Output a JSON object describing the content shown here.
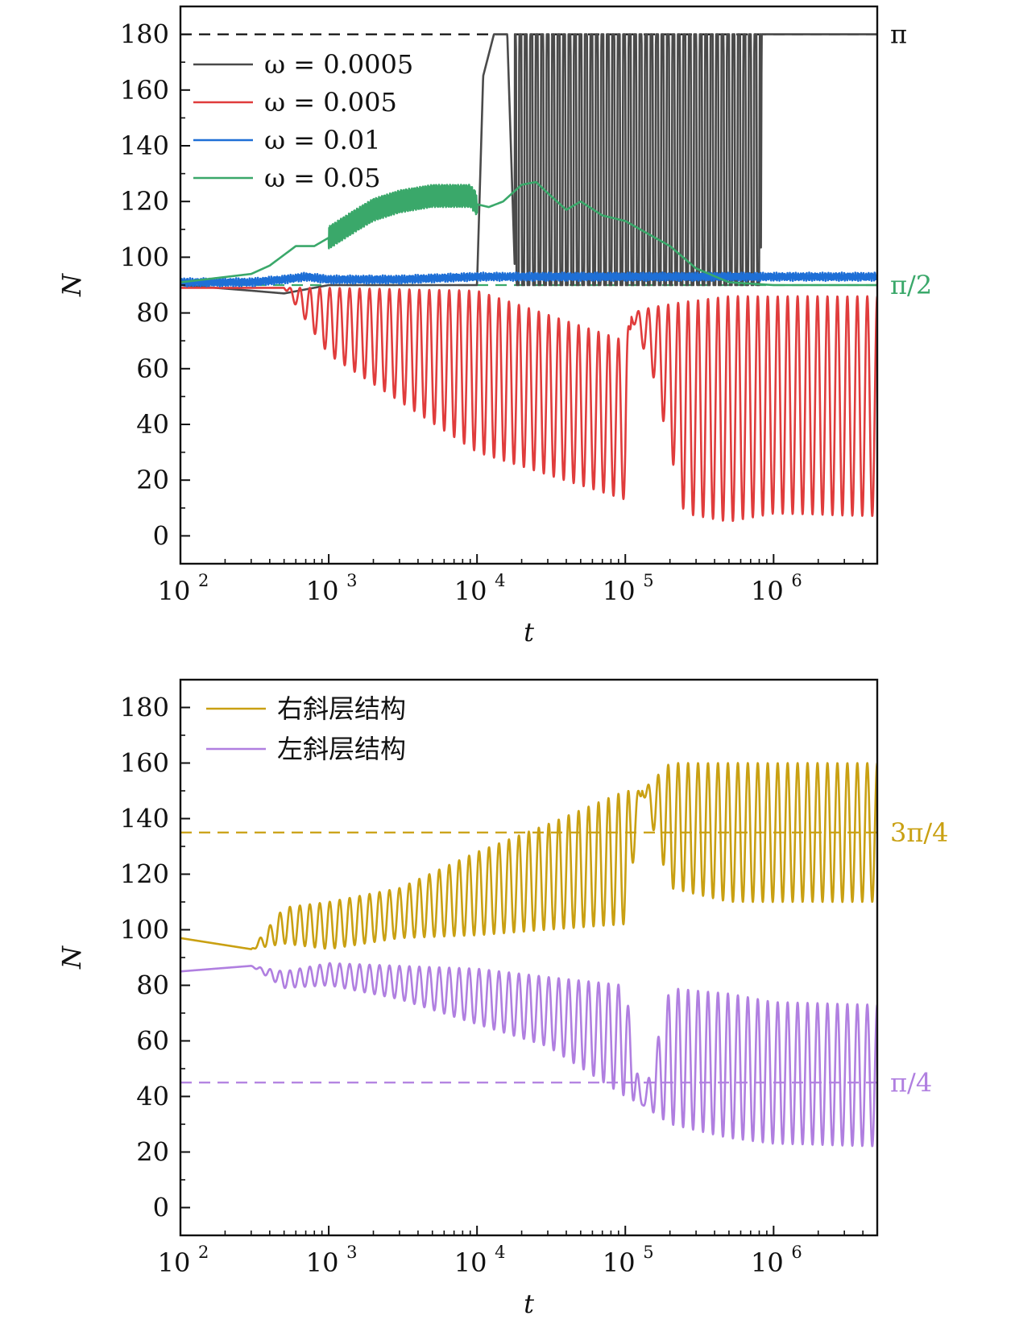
{
  "chart_data": [
    {
      "type": "line",
      "xscale": "log",
      "xlim": [
        100,
        5000000
      ],
      "ylim": [
        -10,
        190
      ],
      "xlabel": "t",
      "ylabel": "N",
      "xticks": [
        100,
        1000,
        10000,
        100000,
        1000000
      ],
      "xtick_labels": [
        {
          "base": "10",
          "exp": "2"
        },
        {
          "base": "10",
          "exp": "3"
        },
        {
          "base": "10",
          "exp": "4"
        },
        {
          "base": "10",
          "exp": "5"
        },
        {
          "base": "10",
          "exp": "6"
        }
      ],
      "yticks": [
        0,
        20,
        40,
        60,
        80,
        100,
        120,
        140,
        160,
        180
      ],
      "ytick_labels": [
        "0",
        "20",
        "40",
        "60",
        "80",
        "100",
        "120",
        "140",
        "160",
        "180"
      ],
      "legend_position": "top-left",
      "series": [
        {
          "name": "ω = 0.0005",
          "color": "#4a4a4a",
          "pattern": "switch",
          "x": [
            100,
            300,
            500,
            1000,
            3000,
            9500,
            10000,
            11000,
            13000,
            16000,
            18000,
            30000,
            80000,
            200000,
            820000,
            830000,
            5000000
          ],
          "y": [
            90,
            88,
            87,
            90,
            90,
            90,
            90,
            165,
            180,
            180,
            95,
            90,
            90,
            90,
            90,
            180,
            180
          ],
          "osc_from": 18000,
          "osc_to": 820000,
          "osc_low": 90,
          "osc_high": 180,
          "osc_cycles": 45
        },
        {
          "name": "ω = 0.005",
          "color": "#e03c3c",
          "pattern": "osc",
          "x": [
            100,
            500,
            1000,
            10000,
            100000,
            110000,
            150000,
            250000,
            500000,
            1000000,
            5000000
          ],
          "y": [
            89,
            89,
            88,
            86,
            86,
            80,
            80,
            10,
            5,
            8,
            7
          ],
          "upper": [
            89,
            89,
            89,
            88,
            70,
            80,
            82,
            84,
            86,
            86,
            86
          ],
          "lower": [
            89,
            89,
            65,
            30,
            13,
            78,
            60,
            8,
            5,
            8,
            7
          ],
          "osc_cycles": 70
        },
        {
          "name": "ω = 0.01",
          "color": "#1e6fd6",
          "pattern": "noise",
          "x": [
            100,
            300,
            500,
            700,
            1000,
            3000,
            10000,
            100000,
            1000000,
            5000000
          ],
          "y": [
            91,
            91,
            92,
            93,
            92,
            92,
            93,
            93,
            93,
            93
          ],
          "amp": 1.5
        },
        {
          "name": "ω = 0.05",
          "color": "#3aa86a",
          "pattern": "growth",
          "x": [
            100,
            300,
            400,
            600,
            800,
            1000,
            1500,
            2000,
            3000,
            5000,
            9000,
            10000,
            12000,
            15000,
            20000,
            25000,
            30000,
            40000,
            50000,
            70000,
            100000,
            200000,
            300000,
            500000,
            1000000,
            5000000
          ],
          "y": [
            91,
            94,
            97,
            104,
            104,
            107,
            113,
            117,
            120,
            122,
            122,
            119,
            118,
            120,
            126,
            127,
            123,
            117,
            120,
            115,
            113,
            104,
            96,
            91,
            90,
            90
          ],
          "osc_from": 1000,
          "osc_to": 10000,
          "osc_amp": 4
        }
      ],
      "reference_lines": [
        {
          "y": 180,
          "label": "π",
          "color": "#111111"
        },
        {
          "y": 90,
          "label": "π/2",
          "color": "#3aa86a"
        }
      ]
    },
    {
      "type": "line",
      "xscale": "log",
      "xlim": [
        100,
        5000000
      ],
      "ylim": [
        -10,
        190
      ],
      "xlabel": "t",
      "ylabel": "N",
      "xticks": [
        100,
        1000,
        10000,
        100000,
        1000000
      ],
      "xtick_labels": [
        {
          "base": "10",
          "exp": "2"
        },
        {
          "base": "10",
          "exp": "3"
        },
        {
          "base": "10",
          "exp": "4"
        },
        {
          "base": "10",
          "exp": "5"
        },
        {
          "base": "10",
          "exp": "6"
        }
      ],
      "yticks": [
        0,
        20,
        40,
        60,
        80,
        100,
        120,
        140,
        160,
        180
      ],
      "ytick_labels": [
        "0",
        "20",
        "40",
        "60",
        "80",
        "100",
        "120",
        "140",
        "160",
        "180"
      ],
      "legend_position": "top-left",
      "series": [
        {
          "name": "右斜层结构",
          "color": "#c9a012",
          "pattern": "osc",
          "x": [
            100,
            300,
            500,
            1000,
            3000,
            10000,
            30000,
            100000,
            130000,
            200000,
            500000,
            1000000,
            5000000
          ],
          "y": [
            97,
            93,
            100,
            100,
            100,
            100,
            100,
            100,
            150,
            140,
            120,
            115,
            110
          ],
          "upper": [
            97,
            93,
            108,
            110,
            115,
            128,
            138,
            150,
            150,
            160,
            160,
            160,
            160
          ],
          "lower": [
            97,
            93,
            95,
            93,
            97,
            98,
            100,
            102,
            150,
            115,
            110,
            110,
            110
          ],
          "osc_cycles": 70
        },
        {
          "name": "左斜层结构",
          "color": "#b07fe0",
          "pattern": "osc",
          "x": [
            100,
            300,
            500,
            1000,
            3000,
            10000,
            30000,
            100000,
            130000,
            200000,
            500000,
            1000000,
            5000000
          ],
          "y": [
            85,
            87,
            80,
            80,
            80,
            80,
            80,
            80,
            37,
            45,
            60,
            60,
            55
          ],
          "upper": [
            85,
            87,
            85,
            88,
            87,
            86,
            83,
            80,
            37,
            79,
            77,
            74,
            73
          ],
          "lower": [
            85,
            87,
            79,
            80,
            75,
            66,
            58,
            40,
            37,
            30,
            25,
            23,
            22
          ],
          "osc_cycles": 70
        }
      ],
      "reference_lines": [
        {
          "y": 135,
          "label": "3π/4",
          "color": "#c9a012"
        },
        {
          "y": 45,
          "label": "π/4",
          "color": "#b07fe0"
        }
      ]
    }
  ]
}
